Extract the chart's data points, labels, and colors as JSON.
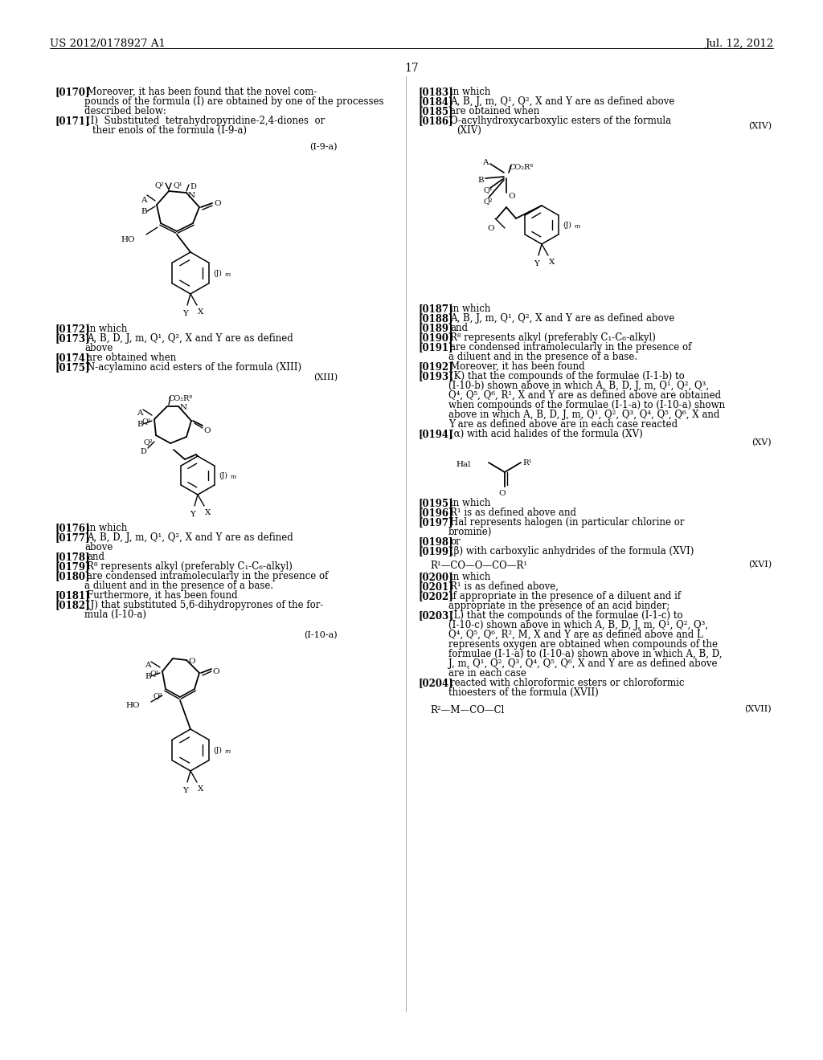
{
  "page_number": "17",
  "header_left": "US 2012/0178927 A1",
  "header_right": "Jul. 12, 2012",
  "background_color": "#ffffff",
  "text_color": "#000000"
}
